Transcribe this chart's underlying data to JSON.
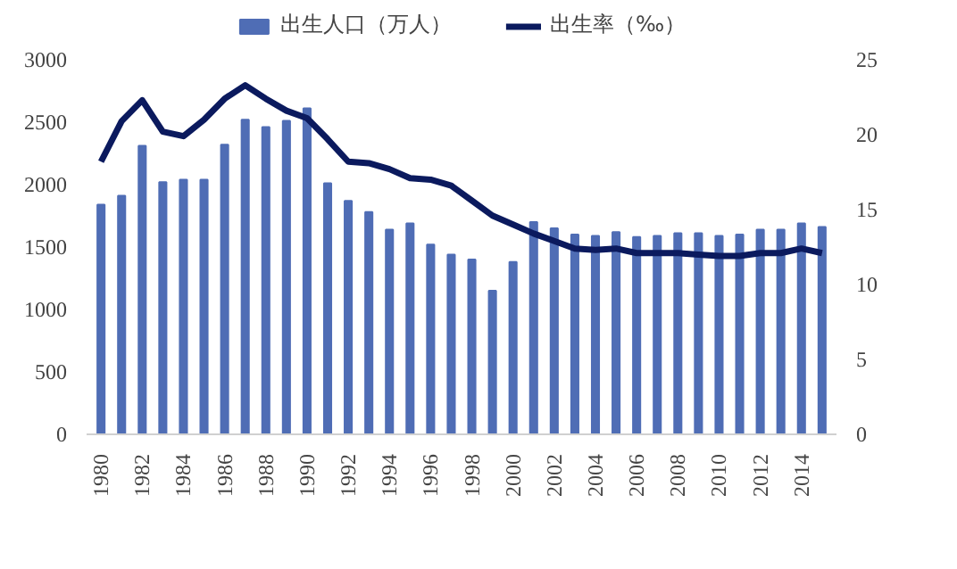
{
  "chart_data": {
    "type": "bar",
    "categories": [
      "1980",
      null,
      "1982",
      null,
      "1984",
      null,
      "1986",
      null,
      "1988",
      null,
      "1990",
      null,
      "1992",
      null,
      "1994",
      null,
      "1996",
      null,
      "1998",
      null,
      "2000",
      null,
      "2002",
      null,
      "2004",
      null,
      "2006",
      null,
      "2008",
      null,
      "2010",
      null,
      "2012",
      null,
      "2014",
      null
    ],
    "series": [
      {
        "name": "出生人口（万人）",
        "color": "#4f6db5",
        "values": [
          1840,
          1910,
          2310,
          2020,
          2040,
          2040,
          2320,
          2520,
          2460,
          2510,
          2610,
          2010,
          1870,
          1780,
          1640,
          1690,
          1520,
          1440,
          1400,
          1150,
          1380,
          1700,
          1650,
          1600,
          1590,
          1620,
          1580,
          1590,
          1610,
          1610,
          1590,
          1600,
          1640,
          1640,
          1690,
          1660
        ]
      },
      {
        "name": "出生率（‰）",
        "type": "line",
        "axis": "y2",
        "color": "#0b1a5e",
        "values": [
          18.2,
          20.9,
          22.3,
          20.2,
          19.9,
          21.0,
          22.4,
          23.3,
          22.4,
          21.6,
          21.1,
          19.7,
          18.2,
          18.1,
          17.7,
          17.1,
          17.0,
          16.6,
          15.6,
          14.6,
          14.0,
          13.4,
          12.9,
          12.4,
          12.3,
          12.4,
          12.1,
          12.1,
          12.1,
          12.0,
          11.9,
          11.9,
          12.1,
          12.1,
          12.4,
          12.1
        ]
      }
    ],
    "ylim": [
      0,
      3000
    ],
    "yticks": [
      0,
      500,
      1000,
      1500,
      2000,
      2500,
      3000
    ],
    "y2lim": [
      0,
      25
    ],
    "y2ticks": [
      0,
      5,
      10,
      15,
      20,
      25
    ],
    "grid": false,
    "legend": "top",
    "marker": "none",
    "line_style": "solid"
  }
}
